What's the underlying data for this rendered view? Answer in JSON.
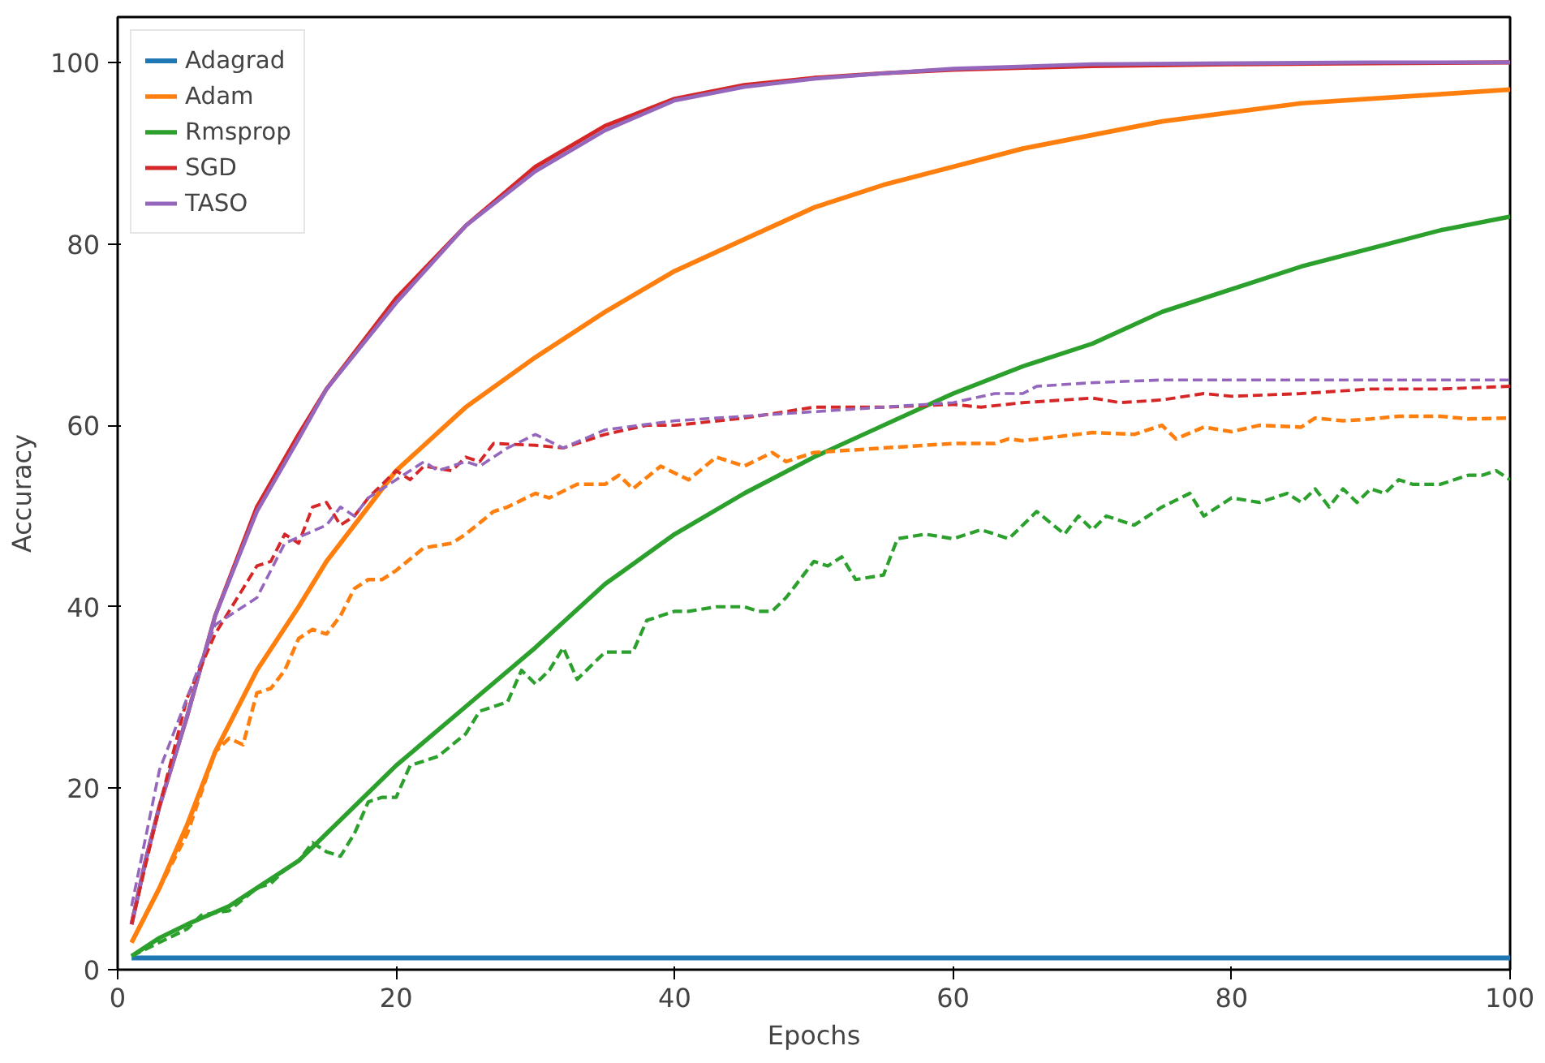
{
  "chart_data": {
    "type": "line",
    "xlabel": "Epochs",
    "ylabel": "Accuracy",
    "xlim": [
      0,
      100
    ],
    "ylim": [
      0,
      105
    ],
    "xticks": [
      0,
      20,
      40,
      60,
      80,
      100
    ],
    "yticks": [
      0,
      20,
      40,
      60,
      80,
      100
    ],
    "grid": false,
    "legend": "top left",
    "marker": "none",
    "series": [
      {
        "name": "Adagrad",
        "color": "#1f77b4",
        "line_style": "solid",
        "x": [
          1,
          10,
          20,
          40,
          60,
          80,
          100
        ],
        "values": [
          1.3,
          1.3,
          1.3,
          1.3,
          1.3,
          1.3,
          1.3
        ]
      },
      {
        "name": "Adam",
        "color": "#ff7f0e",
        "line_style": "solid",
        "x": [
          1,
          3,
          5,
          7,
          10,
          13,
          15,
          18,
          20,
          25,
          30,
          35,
          40,
          45,
          50,
          55,
          60,
          65,
          70,
          75,
          80,
          85,
          90,
          95,
          100
        ],
        "values": [
          3,
          9,
          16,
          24,
          33,
          40,
          45,
          51,
          55,
          62,
          67.5,
          72.5,
          77,
          80.5,
          84,
          86.5,
          88.5,
          90.5,
          92,
          93.5,
          94.5,
          95.5,
          96,
          96.5,
          97
        ]
      },
      {
        "name": "Rmsprop",
        "color": "#2ca02c",
        "line_style": "solid",
        "x": [
          1,
          3,
          5,
          8,
          10,
          13,
          15,
          18,
          20,
          25,
          30,
          35,
          40,
          45,
          50,
          55,
          60,
          65,
          70,
          75,
          80,
          85,
          90,
          95,
          100
        ],
        "values": [
          1.5,
          3.5,
          5,
          7,
          9,
          12,
          15,
          19.5,
          22.5,
          29,
          35.5,
          42.5,
          48,
          52.5,
          56.5,
          60,
          63.5,
          66.5,
          69,
          72.5,
          75,
          77.5,
          79.5,
          81.5,
          83
        ]
      },
      {
        "name": "SGD",
        "color": "#d62728",
        "line_style": "solid",
        "x": [
          1,
          2,
          3,
          5,
          7,
          10,
          13,
          15,
          20,
          25,
          30,
          35,
          40,
          45,
          50,
          55,
          60,
          70,
          80,
          90,
          100
        ],
        "values": [
          5,
          12,
          18,
          28,
          39,
          51,
          59,
          64,
          74,
          82,
          88.5,
          93,
          96,
          97.5,
          98.3,
          98.8,
          99.2,
          99.6,
          99.8,
          99.9,
          100
        ]
      },
      {
        "name": "TASO",
        "color": "#9467bd",
        "line_style": "solid",
        "x": [
          1,
          2,
          3,
          5,
          7,
          10,
          13,
          15,
          20,
          25,
          30,
          35,
          40,
          45,
          50,
          55,
          60,
          70,
          80,
          90,
          100
        ],
        "values": [
          5,
          12,
          18,
          28,
          39,
          50.5,
          58.5,
          64,
          73.5,
          82,
          88,
          92.5,
          95.8,
          97.3,
          98.2,
          98.8,
          99.3,
          99.8,
          99.9,
          100,
          100
        ]
      },
      {
        "color": "#ff7f0e",
        "line_style": "dashed",
        "x": [
          1,
          3,
          5,
          7,
          8,
          9,
          10,
          11,
          12,
          13,
          14,
          15,
          16,
          17,
          18,
          19,
          20,
          22,
          24,
          25,
          27,
          28,
          30,
          31,
          33,
          35,
          36,
          37,
          39,
          41,
          43,
          45,
          47,
          48,
          50,
          55,
          60,
          63,
          64,
          65,
          70,
          73,
          75,
          76,
          78,
          80,
          82,
          85,
          86,
          88,
          90,
          92,
          95,
          97,
          100
        ],
        "values": [
          3,
          9,
          15,
          24,
          25.5,
          24.8,
          30.5,
          31,
          33,
          36.5,
          37.5,
          37,
          39,
          42,
          43,
          43,
          44,
          46.5,
          47,
          48,
          50.5,
          51,
          52.5,
          52,
          53.5,
          53.5,
          54.5,
          53,
          55.5,
          54,
          56.5,
          55.5,
          57,
          56,
          57,
          57.5,
          58,
          58,
          58.5,
          58.3,
          59.2,
          59,
          60,
          58.5,
          59.8,
          59.3,
          60,
          59.8,
          60.8,
          60.5,
          60.7,
          61,
          61,
          60.7,
          60.8
        ]
      },
      {
        "color": "#2ca02c",
        "line_style": "dashed",
        "x": [
          1,
          3,
          5,
          6,
          8,
          10,
          11,
          12,
          13,
          14,
          15,
          16,
          17,
          18,
          19,
          20,
          21,
          23,
          25,
          26,
          27,
          28,
          29,
          30,
          31,
          32,
          33,
          35,
          37,
          38,
          40,
          41,
          43,
          45,
          46,
          47,
          48,
          50,
          51,
          52,
          53,
          55,
          56,
          58,
          60,
          62,
          64,
          66,
          68,
          69,
          70,
          71,
          73,
          75,
          77,
          78,
          80,
          82,
          84,
          85,
          86,
          87,
          88,
          89,
          90,
          91,
          92,
          93,
          95,
          97,
          98,
          99,
          100
        ],
        "values": [
          1.5,
          3,
          4.5,
          6,
          6.5,
          9,
          9.5,
          11,
          12,
          14,
          13,
          12.5,
          15,
          18.5,
          19,
          19,
          22.5,
          23.5,
          26,
          28.5,
          29,
          29.5,
          33,
          31.5,
          33,
          35.5,
          32,
          35,
          35,
          38.5,
          39.5,
          39.5,
          40,
          40,
          39.5,
          39.5,
          41,
          45,
          44.5,
          45.5,
          43,
          43.5,
          47.5,
          48,
          47.5,
          48.5,
          47.5,
          50.5,
          48,
          50,
          48.5,
          50,
          49,
          51,
          52.5,
          50,
          52,
          51.5,
          52.5,
          51.5,
          53,
          51,
          53,
          51.5,
          53,
          52.5,
          54,
          53.5,
          53.5,
          54.5,
          54.5,
          55,
          54
        ]
      },
      {
        "color": "#d62728",
        "line_style": "dashed",
        "x": [
          1,
          3,
          5,
          7,
          9,
          10,
          11,
          12,
          13,
          14,
          15,
          16,
          17,
          18,
          20,
          21,
          22,
          24,
          25,
          26,
          27,
          30,
          32,
          35,
          38,
          40,
          45,
          50,
          55,
          60,
          62,
          65,
          70,
          72,
          75,
          78,
          80,
          85,
          88,
          90,
          95,
          100
        ],
        "values": [
          5,
          18,
          30,
          37,
          42,
          44.5,
          45,
          48,
          47,
          51,
          51.5,
          49,
          50,
          52,
          55,
          54,
          55.5,
          55,
          56.5,
          56,
          58,
          57.8,
          57.5,
          59,
          60,
          60,
          60.8,
          62,
          62,
          62.3,
          62,
          62.5,
          63,
          62.5,
          62.8,
          63.5,
          63.2,
          63.5,
          63.8,
          64,
          64,
          64.3
        ]
      },
      {
        "color": "#9467bd",
        "line_style": "dashed",
        "x": [
          1,
          3,
          5,
          7,
          10,
          12,
          15,
          16,
          17,
          18,
          20,
          22,
          23,
          25,
          26,
          28,
          30,
          32,
          35,
          40,
          45,
          50,
          55,
          60,
          63,
          65,
          66,
          70,
          75,
          80,
          90,
          100
        ],
        "values": [
          7,
          22,
          30,
          38,
          41,
          47,
          49,
          51,
          50,
          52,
          54,
          56,
          55,
          56,
          55.5,
          57.5,
          59,
          57.5,
          59.5,
          60.5,
          61,
          61.5,
          62,
          62.5,
          63.5,
          63.5,
          64.3,
          64.7,
          65,
          65,
          65,
          65
        ]
      }
    ]
  }
}
